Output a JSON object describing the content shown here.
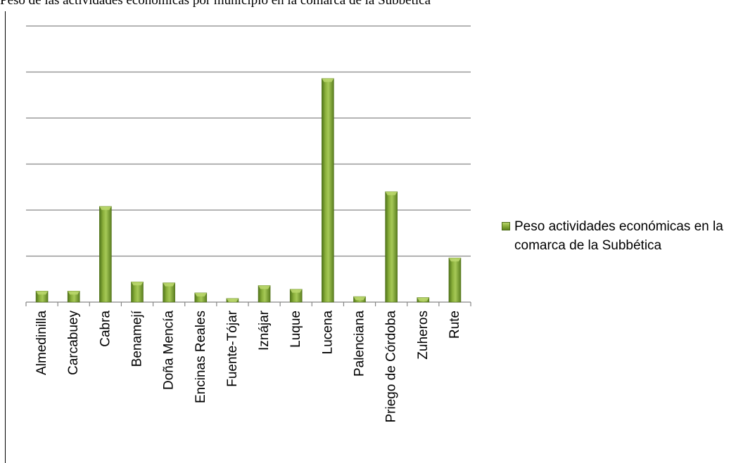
{
  "caption": "Peso de las actividades económicas por municipio en la comarca de la Subbética",
  "colors": {
    "bar_light": "#b9d66b",
    "bar_mid": "#8bb03c",
    "bar_dark": "#5a7e1f",
    "grid": "#868686",
    "axis": "#868686"
  },
  "chart_data": {
    "type": "bar",
    "title": "",
    "xlabel": "",
    "ylabel": "",
    "ylim": [
      0,
      30
    ],
    "gridlines": [
      5,
      10,
      15,
      20,
      25,
      30
    ],
    "grid": true,
    "ytick_labels_shown": false,
    "legend_position": "right",
    "categories": [
      "Almedinilla",
      "Carcabuey",
      "Cabra",
      "Benamejí",
      "Doña Mencía",
      "Encinas Reales",
      "Fuente-Tójar",
      "Iznájar",
      "Luque",
      "Lucena",
      "Palenciana",
      "Priego de Córdoba",
      "Zuheros",
      "Rute"
    ],
    "series": [
      {
        "name": "Peso actividades económicas en la comarca de la Subbética",
        "values": [
          1.2,
          1.2,
          10.4,
          2.2,
          2.1,
          1.0,
          0.4,
          1.8,
          1.4,
          24.3,
          0.6,
          12.0,
          0.5,
          4.8
        ]
      }
    ]
  }
}
